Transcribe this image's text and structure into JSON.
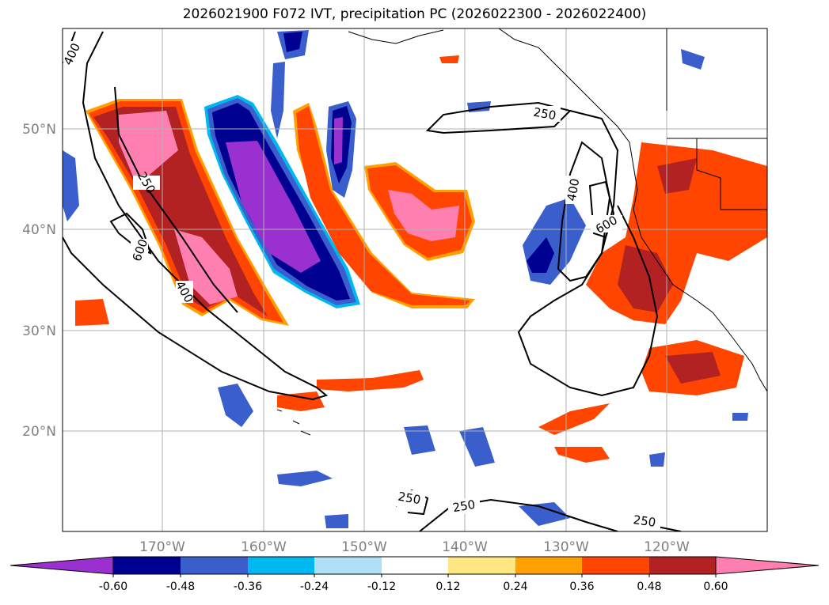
{
  "title": "2026021900 F072 IVT, precipitation PC (2026022300 - 2026022400)",
  "lat_labels": [
    "50°N",
    "40°N",
    "30°N",
    "20°N"
  ],
  "lon_labels": [
    "170°W",
    "160°W",
    "150°W",
    "140°W",
    "130°W",
    "120°W"
  ],
  "contour_labels": [
    "250",
    "400",
    "600"
  ],
  "colorbar": {
    "ticks": [
      "-0.60",
      "-0.48",
      "-0.36",
      "-0.24",
      "-0.12",
      "0.12",
      "0.24",
      "0.36",
      "0.48",
      "0.60"
    ],
    "colors": [
      "#9b30d0",
      "#000090",
      "#3a5fcd",
      "#00b8f0",
      "#b0e0f8",
      "#ffffff",
      "#ffe680",
      "#ffa000",
      "#ff4500",
      "#b22222",
      "#ff80b0"
    ]
  },
  "colors": {
    "pc_strong_neg": "#9b30d0",
    "pc_neg": "#000090",
    "pc_mid_neg": "#3a5fcd",
    "pc_weak_neg": "#00b8f0",
    "pc_strong_pos": "#ff80b0",
    "pc_pos": "#b22222",
    "pc_mid_pos": "#ff4500",
    "pc_weak_pos": "#ffa000"
  }
}
